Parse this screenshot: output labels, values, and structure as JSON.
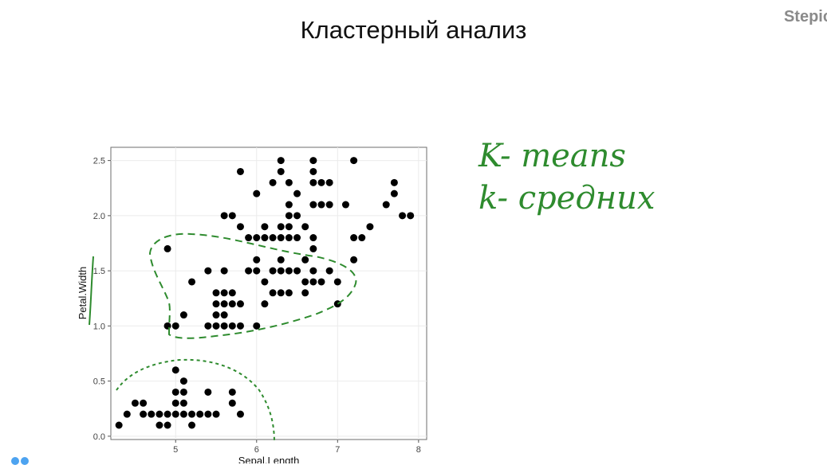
{
  "page": {
    "title": "Кластерный анализ",
    "brand": "Stepic"
  },
  "annotations": {
    "line1": "K- means",
    "line2": "k- средних",
    "color": "#2e8b2e"
  },
  "chart_data": {
    "type": "scatter",
    "title": "",
    "xlabel": "Sepal.Length",
    "ylabel": "Petal.Width",
    "xlim": [
      4.2,
      8.1
    ],
    "ylim": [
      -0.03,
      2.62
    ],
    "xticks": [
      5,
      6,
      7,
      8
    ],
    "yticks": [
      0.0,
      0.5,
      1.0,
      1.5,
      2.0,
      2.5
    ],
    "ytick_labels": [
      "0.0",
      "0.5",
      "1.0",
      "1.5",
      "2.0",
      "2.5"
    ],
    "grid": true,
    "point_color": "#000000",
    "points": [
      [
        4.3,
        0.1
      ],
      [
        4.4,
        0.2
      ],
      [
        4.5,
        0.3
      ],
      [
        4.6,
        0.3
      ],
      [
        4.6,
        0.2
      ],
      [
        4.7,
        0.2
      ],
      [
        4.8,
        0.2
      ],
      [
        4.8,
        0.1
      ],
      [
        4.9,
        0.2
      ],
      [
        4.9,
        0.1
      ],
      [
        5.0,
        0.2
      ],
      [
        5.0,
        0.3
      ],
      [
        5.0,
        0.4
      ],
      [
        5.0,
        0.6
      ],
      [
        5.1,
        0.2
      ],
      [
        5.1,
        0.3
      ],
      [
        5.1,
        0.4
      ],
      [
        5.1,
        0.5
      ],
      [
        5.2,
        0.2
      ],
      [
        5.2,
        0.1
      ],
      [
        5.3,
        0.2
      ],
      [
        5.4,
        0.2
      ],
      [
        5.4,
        0.4
      ],
      [
        5.5,
        0.2
      ],
      [
        5.7,
        0.3
      ],
      [
        5.7,
        0.4
      ],
      [
        5.8,
        0.2
      ],
      [
        4.9,
        1.0
      ],
      [
        5.0,
        1.0
      ],
      [
        5.1,
        1.1
      ],
      [
        4.9,
        1.7
      ],
      [
        5.2,
        1.4
      ],
      [
        5.4,
        1.5
      ],
      [
        5.5,
        1.0
      ],
      [
        5.5,
        1.1
      ],
      [
        5.5,
        1.2
      ],
      [
        5.5,
        1.3
      ],
      [
        5.6,
        1.0
      ],
      [
        5.6,
        1.1
      ],
      [
        5.6,
        1.2
      ],
      [
        5.6,
        1.3
      ],
      [
        5.6,
        1.5
      ],
      [
        5.7,
        1.0
      ],
      [
        5.7,
        1.2
      ],
      [
        5.7,
        1.3
      ],
      [
        5.8,
        1.0
      ],
      [
        5.8,
        1.2
      ],
      [
        5.9,
        1.5
      ],
      [
        6.0,
        1.0
      ],
      [
        6.0,
        1.5
      ],
      [
        6.0,
        1.6
      ],
      [
        6.1,
        1.2
      ],
      [
        6.1,
        1.4
      ],
      [
        6.2,
        1.3
      ],
      [
        6.2,
        1.5
      ],
      [
        6.3,
        1.3
      ],
      [
        6.3,
        1.5
      ],
      [
        6.4,
        1.3
      ],
      [
        6.4,
        1.5
      ],
      [
        6.5,
        1.5
      ],
      [
        6.6,
        1.3
      ],
      [
        6.6,
        1.4
      ],
      [
        6.7,
        1.4
      ],
      [
        6.7,
        1.5
      ],
      [
        6.8,
        1.4
      ],
      [
        6.9,
        1.5
      ],
      [
        7.0,
        1.4
      ],
      [
        6.3,
        1.6
      ],
      [
        6.7,
        1.7
      ],
      [
        5.9,
        1.8
      ],
      [
        6.0,
        1.8
      ],
      [
        6.1,
        1.8
      ],
      [
        6.2,
        1.8
      ],
      [
        6.3,
        1.8
      ],
      [
        6.4,
        1.8
      ],
      [
        6.5,
        1.8
      ],
      [
        6.7,
        1.8
      ],
      [
        7.2,
        1.8
      ],
      [
        7.3,
        1.8
      ],
      [
        7.4,
        1.9
      ],
      [
        7.2,
        1.6
      ],
      [
        5.6,
        2.0
      ],
      [
        5.7,
        2.0
      ],
      [
        5.8,
        2.4
      ],
      [
        6.0,
        2.2
      ],
      [
        6.2,
        2.3
      ],
      [
        6.3,
        2.5
      ],
      [
        6.3,
        2.4
      ],
      [
        6.4,
        2.3
      ],
      [
        6.4,
        2.1
      ],
      [
        6.4,
        2.0
      ],
      [
        6.5,
        2.2
      ],
      [
        6.5,
        2.0
      ],
      [
        6.7,
        2.5
      ],
      [
        6.7,
        2.3
      ],
      [
        6.7,
        2.1
      ],
      [
        6.7,
        2.4
      ],
      [
        6.8,
        2.1
      ],
      [
        6.8,
        2.3
      ],
      [
        6.9,
        2.3
      ],
      [
        6.9,
        2.1
      ],
      [
        7.1,
        2.1
      ],
      [
        7.2,
        2.5
      ],
      [
        7.6,
        2.1
      ],
      [
        7.7,
        2.2
      ],
      [
        7.7,
        2.3
      ],
      [
        7.8,
        2.0
      ],
      [
        7.9,
        2.0
      ],
      [
        5.8,
        1.9
      ],
      [
        6.1,
        1.9
      ],
      [
        6.4,
        1.9
      ],
      [
        6.6,
        1.9
      ],
      [
        6.3,
        1.9
      ],
      [
        7.0,
        1.2
      ],
      [
        5.4,
        1.0
      ],
      [
        6.6,
        1.6
      ]
    ]
  }
}
